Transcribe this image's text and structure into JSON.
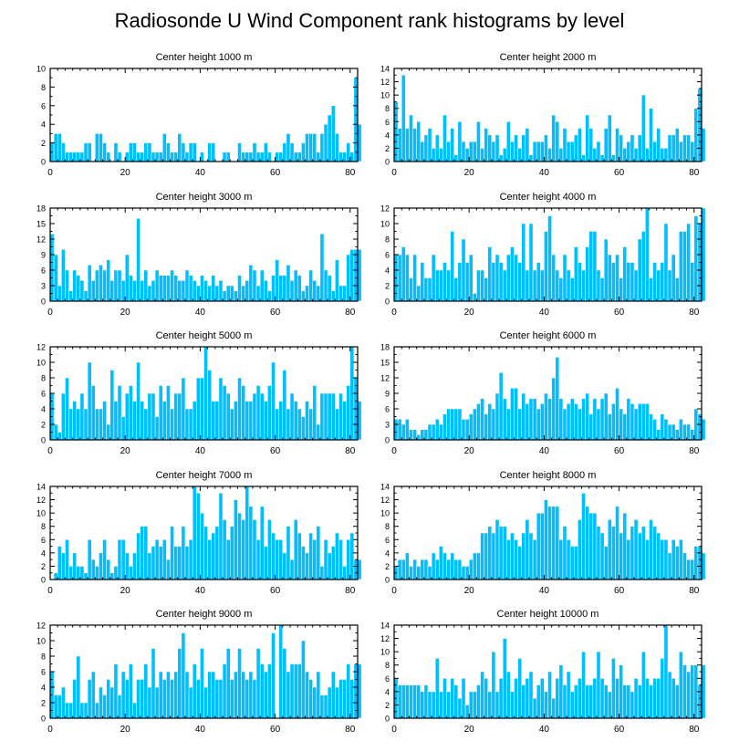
{
  "title": "Radiosonde U Wind Component rank histograms by level",
  "colors": {
    "bar": "#00bfff",
    "bar_edge": "#ffffff",
    "axis": "#000000"
  },
  "chart_data": [
    {
      "type": "bar",
      "title": "Center height 1000 m",
      "xlim": [
        0,
        82
      ],
      "ylim": [
        0,
        10
      ],
      "xticks": [
        0,
        20,
        40,
        60,
        80
      ],
      "yticks": [
        0,
        2,
        4,
        6,
        8,
        10
      ],
      "values": [
        2,
        3,
        3,
        2,
        1,
        1,
        1,
        1,
        1,
        2,
        2,
        0,
        3,
        3,
        2,
        1,
        0,
        2,
        1,
        0,
        1,
        2,
        2,
        1,
        1,
        2,
        2,
        1,
        1,
        1,
        3,
        2,
        1,
        1,
        3,
        2,
        1,
        2,
        2,
        0,
        1,
        0,
        2,
        2,
        0,
        0,
        1,
        1,
        0,
        0,
        2,
        1,
        1,
        1,
        2,
        1,
        1,
        2,
        1,
        0,
        1,
        1,
        2,
        3,
        2,
        1,
        1,
        2,
        3,
        3,
        3,
        1,
        3,
        4,
        5,
        6,
        3,
        1,
        1,
        2,
        1,
        9,
        4
      ]
    },
    {
      "type": "bar",
      "title": "Center height 2000 m",
      "xlim": [
        0,
        82
      ],
      "ylim": [
        0,
        14
      ],
      "xticks": [
        0,
        20,
        40,
        60,
        80
      ],
      "yticks": [
        0,
        2,
        4,
        6,
        8,
        10,
        12,
        14
      ],
      "values": [
        9,
        5,
        13,
        5,
        7,
        5,
        6,
        3,
        4,
        5,
        2,
        4,
        2,
        7,
        3,
        5,
        1,
        6,
        3,
        2,
        3,
        3,
        6,
        2,
        5,
        4,
        3,
        4,
        1,
        2,
        6,
        3,
        4,
        2,
        4,
        5,
        1,
        3,
        3,
        3,
        4,
        2,
        7,
        6,
        2,
        5,
        3,
        3,
        4,
        5,
        1,
        7,
        5,
        2,
        3,
        1,
        5,
        7,
        1,
        5,
        4,
        2,
        3,
        4,
        2,
        4,
        10,
        2,
        8,
        3,
        5,
        2,
        2,
        4,
        4,
        5,
        3,
        4,
        4,
        3,
        8,
        11,
        5
      ]
    },
    {
      "type": "bar",
      "title": "Center height 3000 m",
      "xlim": [
        0,
        82
      ],
      "ylim": [
        0,
        18
      ],
      "xticks": [
        0,
        20,
        40,
        60,
        80
      ],
      "yticks": [
        0,
        3,
        6,
        9,
        12,
        15,
        18
      ],
      "values": [
        13,
        9,
        3,
        10,
        6,
        2,
        6,
        5,
        4,
        2,
        7,
        4,
        6,
        7,
        6,
        8,
        4,
        6,
        6,
        4,
        9,
        5,
        4,
        16,
        4,
        6,
        3,
        4,
        6,
        5,
        5,
        5,
        6,
        5,
        4,
        4,
        6,
        5,
        4,
        3,
        5,
        4,
        3,
        5,
        3,
        4,
        2,
        3,
        3,
        2,
        5,
        3,
        4,
        7,
        6,
        3,
        6,
        4,
        2,
        5,
        8,
        5,
        5,
        7,
        4,
        6,
        5,
        2,
        3,
        6,
        4,
        3,
        13,
        6,
        5,
        2,
        8,
        3,
        3,
        9,
        10,
        10,
        10
      ]
    },
    {
      "type": "bar",
      "title": "Center height 4000 m",
      "xlim": [
        0,
        82
      ],
      "ylim": [
        0,
        12
      ],
      "xticks": [
        0,
        20,
        40,
        60,
        80
      ],
      "yticks": [
        0,
        2,
        4,
        6,
        8,
        10,
        12
      ],
      "values": [
        6,
        6,
        7,
        6,
        3,
        6,
        2,
        5,
        3,
        3,
        6,
        4,
        4,
        5,
        4,
        9,
        3,
        5,
        8,
        5,
        6,
        1,
        4,
        4,
        3,
        7,
        5,
        6,
        5,
        4,
        6,
        7,
        6,
        5,
        10,
        4,
        10,
        4,
        5,
        4,
        9,
        11,
        6,
        4,
        3,
        6,
        4,
        3,
        7,
        5,
        4,
        7,
        9,
        9,
        4,
        3,
        8,
        6,
        5,
        6,
        3,
        7,
        5,
        5,
        4,
        8,
        9,
        12,
        3,
        5,
        4,
        5,
        10,
        4,
        6,
        3,
        9,
        9,
        10,
        5,
        11,
        10,
        12
      ]
    },
    {
      "type": "bar",
      "title": "Center height 5000 m",
      "xlim": [
        0,
        82
      ],
      "ylim": [
        0,
        12
      ],
      "xticks": [
        0,
        20,
        40,
        60,
        80
      ],
      "yticks": [
        0,
        2,
        4,
        6,
        8,
        10,
        12
      ],
      "values": [
        6,
        2,
        1,
        6,
        8,
        4,
        5,
        4,
        6,
        4,
        10,
        7,
        4,
        4,
        5,
        2,
        9,
        5,
        7,
        3,
        6,
        7,
        5,
        10,
        5,
        4,
        6,
        6,
        3,
        7,
        5,
        7,
        4,
        6,
        6,
        8,
        4,
        4,
        5,
        8,
        8,
        12,
        9,
        5,
        5,
        8,
        7,
        6,
        4,
        5,
        8,
        7,
        5,
        5,
        6,
        7,
        6,
        5,
        7,
        10,
        4,
        5,
        9,
        4,
        6,
        5,
        4,
        3,
        5,
        4,
        7,
        2,
        6,
        6,
        6,
        6,
        4,
        6,
        5,
        7,
        12,
        8,
        5
      ]
    },
    {
      "type": "bar",
      "title": "Center height 6000 m",
      "xlim": [
        0,
        82
      ],
      "ylim": [
        0,
        18
      ],
      "xticks": [
        0,
        20,
        40,
        60,
        80
      ],
      "yticks": [
        0,
        3,
        6,
        9,
        12,
        15,
        18
      ],
      "values": [
        4,
        4,
        3,
        4,
        2,
        2,
        1,
        2,
        2,
        3,
        3,
        4,
        3,
        5,
        6,
        6,
        6,
        6,
        4,
        4,
        5,
        6,
        7,
        8,
        5,
        7,
        6,
        9,
        13,
        8,
        6,
        10,
        10,
        6,
        9,
        7,
        8,
        8,
        6,
        7,
        9,
        8,
        12,
        16,
        8,
        6,
        7,
        8,
        7,
        6,
        8,
        9,
        5,
        8,
        6,
        8,
        9,
        5,
        7,
        10,
        6,
        5,
        8,
        7,
        6,
        7,
        7,
        7,
        5,
        4,
        2,
        5,
        4,
        3,
        3,
        2,
        4,
        3,
        3,
        2,
        6,
        5,
        4
      ]
    },
    {
      "type": "bar",
      "title": "Center height 7000 m",
      "xlim": [
        0,
        82
      ],
      "ylim": [
        0,
        14
      ],
      "xticks": [
        0,
        20,
        40,
        60,
        80
      ],
      "yticks": [
        0,
        2,
        4,
        6,
        8,
        10,
        12,
        14
      ],
      "values": [
        0,
        1,
        5,
        4,
        6,
        2,
        4,
        2,
        2,
        1,
        6,
        3,
        2,
        4,
        6,
        3,
        1,
        2,
        6,
        6,
        4,
        2,
        4,
        7,
        8,
        8,
        4,
        5,
        6,
        5,
        6,
        3,
        8,
        5,
        5,
        8,
        5,
        6,
        14,
        13,
        10,
        8,
        6,
        7,
        8,
        13,
        9,
        6,
        8,
        12,
        10,
        9,
        14,
        11,
        9,
        6,
        11,
        5,
        9,
        7,
        6,
        6,
        4,
        8,
        3,
        9,
        7,
        5,
        4,
        7,
        6,
        8,
        2,
        6,
        4,
        5,
        7,
        6,
        2,
        6,
        7,
        3,
        3
      ]
    },
    {
      "type": "bar",
      "title": "Center height 8000 m",
      "xlim": [
        0,
        82
      ],
      "ylim": [
        0,
        14
      ],
      "xticks": [
        0,
        20,
        40,
        60,
        80
      ],
      "yticks": [
        0,
        2,
        4,
        6,
        8,
        10,
        12,
        14
      ],
      "values": [
        2,
        3,
        3,
        4,
        2,
        3,
        2,
        3,
        3,
        2,
        4,
        3,
        5,
        4,
        3,
        4,
        3,
        3,
        2,
        2,
        3,
        4,
        4,
        7,
        7,
        8,
        7,
        9,
        8,
        8,
        6,
        7,
        6,
        5,
        7,
        9,
        7,
        6,
        10,
        10,
        12,
        11,
        11,
        11,
        6,
        8,
        6,
        5,
        5,
        9,
        13,
        11,
        10,
        10,
        8,
        7,
        5,
        9,
        8,
        11,
        7,
        10,
        6,
        8,
        9,
        7,
        8,
        6,
        9,
        8,
        7,
        6,
        6,
        4,
        6,
        5,
        6,
        4,
        3,
        3,
        5,
        5,
        4
      ]
    },
    {
      "type": "bar",
      "title": "Center height 9000 m",
      "xlim": [
        0,
        82
      ],
      "ylim": [
        0,
        12
      ],
      "xticks": [
        0,
        20,
        40,
        60,
        80
      ],
      "yticks": [
        0,
        2,
        4,
        6,
        8,
        10,
        12
      ],
      "values": [
        6,
        3,
        3,
        4,
        2,
        2,
        5,
        8,
        2,
        2,
        5,
        6,
        2,
        4,
        3,
        5,
        4,
        7,
        3,
        6,
        5,
        7,
        2,
        5,
        5,
        7,
        4,
        9,
        4,
        6,
        5,
        6,
        5,
        6,
        9,
        11,
        6,
        4,
        7,
        5,
        9,
        4,
        6,
        6,
        5,
        5,
        7,
        9,
        5,
        6,
        9,
        6,
        5,
        6,
        5,
        9,
        7,
        6,
        7,
        11,
        0,
        12,
        9,
        6,
        7,
        7,
        7,
        10,
        6,
        5,
        4,
        6,
        3,
        3,
        4,
        6,
        4,
        5,
        5,
        7,
        5,
        7,
        7
      ]
    },
    {
      "type": "bar",
      "title": "Center height 10000 m",
      "xlim": [
        0,
        82
      ],
      "ylim": [
        0,
        14
      ],
      "xticks": [
        0,
        20,
        40,
        60,
        80
      ],
      "yticks": [
        0,
        2,
        4,
        6,
        8,
        10,
        12,
        14
      ],
      "values": [
        6,
        5,
        5,
        5,
        5,
        5,
        5,
        4,
        5,
        4,
        4,
        9,
        4,
        6,
        4,
        6,
        5,
        3,
        6,
        2,
        4,
        4,
        5,
        7,
        6,
        4,
        10,
        4,
        6,
        12,
        7,
        4,
        6,
        9,
        5,
        6,
        7,
        3,
        5,
        6,
        4,
        7,
        3,
        6,
        8,
        5,
        7,
        4,
        5,
        6,
        10,
        5,
        5,
        6,
        10,
        6,
        5,
        4,
        9,
        6,
        8,
        5,
        5,
        4,
        6,
        5,
        10,
        6,
        5,
        6,
        6,
        9,
        14,
        7,
        6,
        5,
        10,
        8,
        7,
        8,
        8,
        5,
        8
      ]
    }
  ]
}
